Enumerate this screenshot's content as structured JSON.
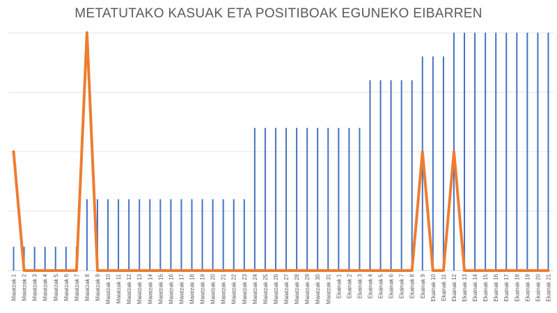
{
  "chart_data": {
    "type": "bar",
    "title": "METATUTAKO KASUAK ETA POSITIBOAK EGUNEKO EIBARREN",
    "xlabel": "",
    "ylabel": "",
    "ylim": [
      0,
      20
    ],
    "grid": true,
    "legend": "none",
    "categories": [
      "Maiatzak 1",
      "Maiatzak 2",
      "Maiatzak 3",
      "Maiatzak 4",
      "Maiatzak 5",
      "Maiatzak 6",
      "Maiatzak 7",
      "Maiatzak 8",
      "Maiatzak 9",
      "Maiatzak 10",
      "Maiatzak 11",
      "Maiatzak 12",
      "Maiatzak 13",
      "Maiatzak 14",
      "Maiatzak 15",
      "Maiatzak 16",
      "Maiatzak 17",
      "Maiatzak 18",
      "Maiatzak 19",
      "Maiatzak 20",
      "Maiatzak 21",
      "Maiatzak 22",
      "Maiatzak 23",
      "Maiatzak 24",
      "Maiatzak 25",
      "Maiatzak 26",
      "Maiatzak 27",
      "Maiatzak 28",
      "Maiatzak 29",
      "Maiatzak 30",
      "Maiatzak 31",
      "Ekainak 1",
      "Ekainak 2",
      "Ekainak 3",
      "Ekainak 4",
      "Ekainak 5",
      "Ekainak 6",
      "Ekainak 7",
      "Ekainak 8",
      "Ekainak 9",
      "Ekainak 10",
      "Ekainak 11",
      "Ekainak 12",
      "Ekainak 13",
      "Ekainak 14",
      "Ekainak 15",
      "Ekainak 16",
      "Ekainak 17",
      "Ekainak 18",
      "Ekainak 19",
      "Ekainak 20",
      "Ekainak 21"
    ],
    "series": [
      {
        "type": "bar",
        "color": "#4472C4",
        "values": [
          2,
          2,
          2,
          2,
          2,
          2,
          2,
          6,
          6,
          6,
          6,
          6,
          6,
          6,
          6,
          6,
          6,
          6,
          6,
          6,
          6,
          6,
          6,
          12,
          12,
          12,
          12,
          12,
          12,
          12,
          12,
          12,
          12,
          12,
          16,
          16,
          16,
          16,
          16,
          18,
          18,
          18,
          20,
          20,
          20,
          20,
          20,
          20,
          20,
          20,
          20,
          20
        ]
      },
      {
        "type": "line",
        "color": "#ED7D31",
        "values": [
          10,
          0,
          0,
          0,
          0,
          0,
          0,
          20,
          0,
          0,
          0,
          0,
          0,
          0,
          0,
          0,
          0,
          0,
          0,
          0,
          0,
          0,
          0,
          0,
          0,
          0,
          0,
          0,
          0,
          0,
          0,
          0,
          0,
          0,
          0,
          0,
          0,
          0,
          0,
          10,
          0,
          0,
          10,
          0,
          0,
          0,
          0,
          0,
          0,
          0,
          0,
          0
        ]
      }
    ]
  }
}
